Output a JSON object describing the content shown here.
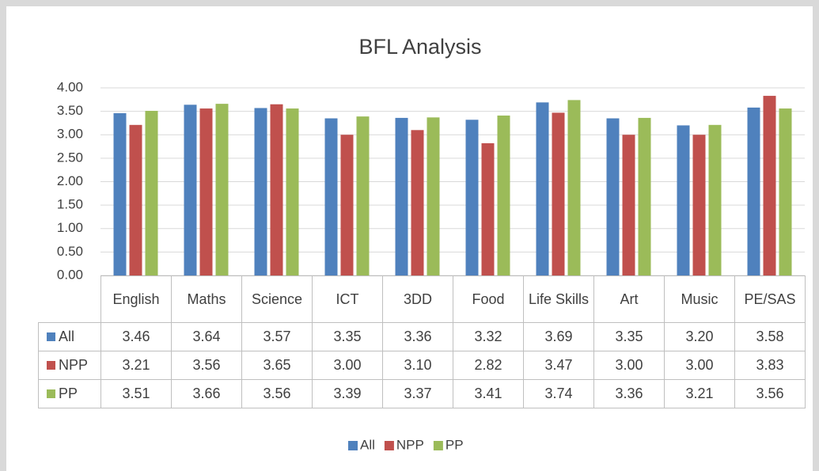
{
  "chart_data": {
    "type": "bar",
    "title": "BFL Analysis",
    "categories": [
      "English",
      "Maths",
      "Science",
      "ICT",
      "3DD",
      "Food",
      "Life Skills",
      "Art",
      "Music",
      "PE/SAS"
    ],
    "series": [
      {
        "name": "All",
        "color": "#4f81bd",
        "values": [
          3.46,
          3.64,
          3.57,
          3.35,
          3.36,
          3.32,
          3.69,
          3.35,
          3.2,
          3.58
        ],
        "value_labels": [
          "3.46",
          "3.64",
          "3.57",
          "3.35",
          "3.36",
          "3.32",
          "3.69",
          "3.35",
          "3.20",
          "3.58"
        ]
      },
      {
        "name": "NPP",
        "color": "#c0504d",
        "values": [
          3.21,
          3.56,
          3.65,
          3.0,
          3.1,
          2.82,
          3.47,
          3.0,
          3.0,
          3.83
        ],
        "value_labels": [
          "3.21",
          "3.56",
          "3.65",
          "3.00",
          "3.10",
          "2.82",
          "3.47",
          "3.00",
          "3.00",
          "3.83"
        ]
      },
      {
        "name": "PP",
        "color": "#9bbb59",
        "values": [
          3.51,
          3.66,
          3.56,
          3.39,
          3.37,
          3.41,
          3.74,
          3.36,
          3.21,
          3.56
        ],
        "value_labels": [
          "3.51",
          "3.66",
          "3.56",
          "3.39",
          "3.37",
          "3.41",
          "3.74",
          "3.36",
          "3.21",
          "3.56"
        ]
      }
    ],
    "ylim": [
      0,
      4
    ],
    "yticks": [
      {
        "value": 0,
        "label": "0.00"
      },
      {
        "value": 0.5,
        "label": "0.50"
      },
      {
        "value": 1,
        "label": "1.00"
      },
      {
        "value": 1.5,
        "label": "1.50"
      },
      {
        "value": 2,
        "label": "2.00"
      },
      {
        "value": 2.5,
        "label": "2.50"
      },
      {
        "value": 3,
        "label": "3.00"
      },
      {
        "value": 3.5,
        "label": "3.50"
      },
      {
        "value": 4,
        "label": "4.00"
      }
    ],
    "grid": true,
    "legend": "bottom"
  }
}
